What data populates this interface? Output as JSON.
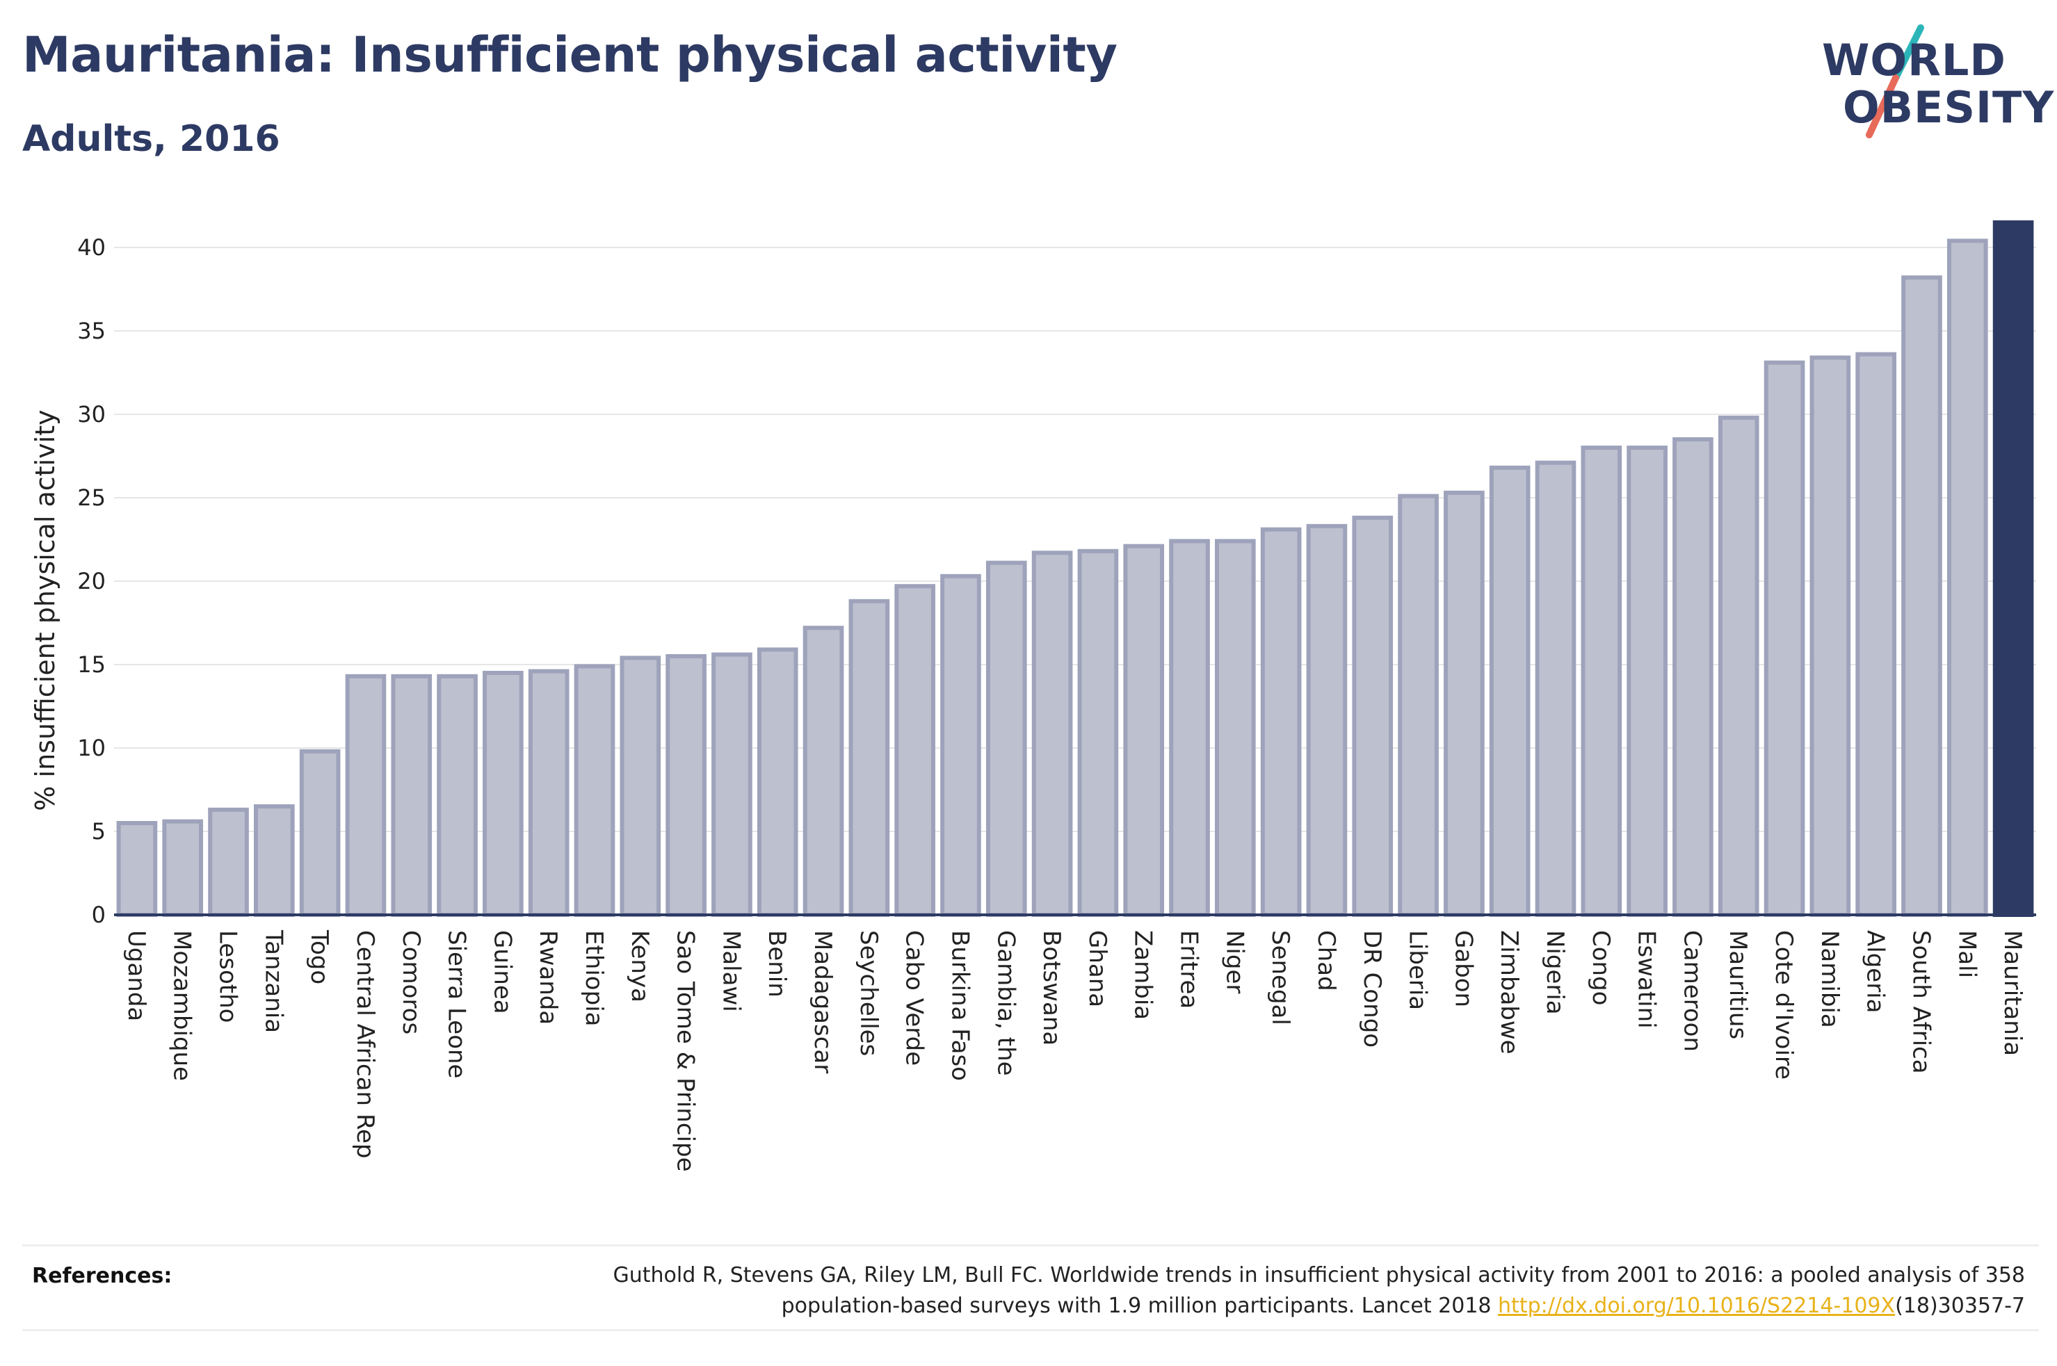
{
  "header": {
    "title": "Mauritania: Insufficient physical activity",
    "subtitle": "Adults, 2016"
  },
  "logo": {
    "line1": "WORLD",
    "line2": "OBESITY",
    "slash_colors": [
      "#2bb5b8",
      "#e86a5a"
    ]
  },
  "colors": {
    "bar": "#bcc0cf",
    "bar_border": "#9ea3bb",
    "highlight": "#2d3a63",
    "grid": "#e6e6e6",
    "axis": "#2d3a63"
  },
  "chart_data": {
    "type": "bar",
    "title": "",
    "xlabel": "",
    "ylabel": "% insufficient physical activity",
    "ylim": [
      0,
      41.5
    ],
    "yticks": [
      0,
      5,
      10,
      15,
      20,
      25,
      30,
      35,
      40
    ],
    "grid": true,
    "highlight": "Mauritania",
    "categories": [
      "Uganda",
      "Mozambique",
      "Lesotho",
      "Tanzania",
      "Togo",
      "Central African Rep",
      "Comoros",
      "Sierra Leone",
      "Guinea",
      "Rwanda",
      "Ethiopia",
      "Kenya",
      "Sao Tome & Principe",
      "Malawi",
      "Benin",
      "Madagascar",
      "Seychelles",
      "Cabo Verde",
      "Burkina Faso",
      "Gambia, the",
      "Botswana",
      "Ghana",
      "Zambia",
      "Eritrea",
      "Niger",
      "Senegal",
      "Chad",
      "DR Congo",
      "Liberia",
      "Gabon",
      "Zimbabwe",
      "Nigeria",
      "Congo",
      "Eswatini",
      "Cameroon",
      "Mauritius",
      "Cote d'Ivoire",
      "Namibia",
      "Algeria",
      "South Africa",
      "Mali",
      "Mauritania"
    ],
    "values": [
      5.5,
      5.6,
      6.3,
      6.5,
      9.8,
      14.3,
      14.3,
      14.3,
      14.5,
      14.6,
      14.9,
      15.4,
      15.5,
      15.6,
      15.9,
      17.2,
      18.8,
      19.7,
      20.3,
      21.1,
      21.7,
      21.8,
      22.1,
      22.4,
      22.4,
      23.1,
      23.3,
      23.8,
      25.1,
      25.3,
      26.8,
      27.1,
      28.0,
      28.0,
      28.5,
      29.8,
      33.1,
      33.4,
      33.6,
      38.2,
      40.4,
      41.5
    ]
  },
  "references": {
    "label": "References:",
    "text_line1": "Guthold R, Stevens GA, Riley LM, Bull FC. Worldwide trends in insufficient physical activity from 2001 to 2016: a pooled analysis of 358",
    "text_line2_pre": "population-based surveys with 1.9 million participants. Lancet 2018 ",
    "link": "http://dx.doi.org/10.1016/S2214-109X",
    "text_line2_post": "(18)30357-7"
  }
}
